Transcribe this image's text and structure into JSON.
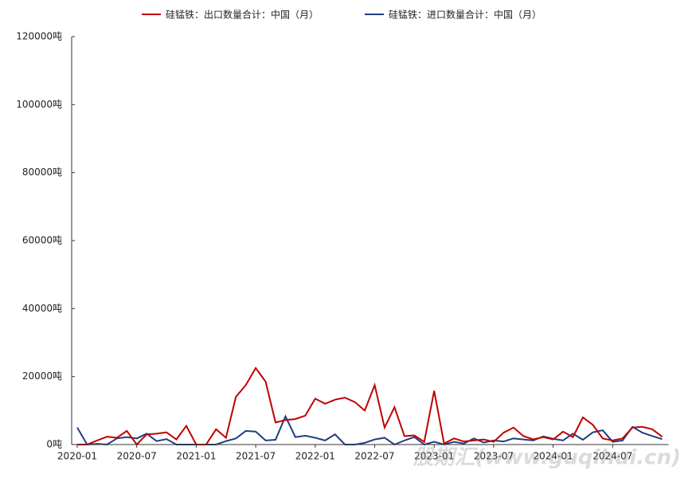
{
  "chart_data": {
    "type": "line",
    "categories": [
      "2020-01",
      null,
      null,
      null,
      null,
      null,
      "2020-07",
      null,
      null,
      null,
      null,
      null,
      "2021-01",
      null,
      null,
      null,
      null,
      null,
      "2021-07",
      null,
      null,
      null,
      null,
      null,
      "2022-01",
      null,
      null,
      null,
      null,
      null,
      "2022-07",
      null,
      null,
      null,
      null,
      null,
      "2023-01",
      null,
      null,
      null,
      null,
      null,
      "2023-07",
      null,
      null,
      null,
      null,
      null,
      "2024-01",
      null,
      null,
      null,
      null,
      null,
      "2024-07",
      null,
      null,
      null,
      null,
      null
    ],
    "series": [
      {
        "name": "硅锰铁：出口数量合计：中国（月）",
        "color": "#c00000",
        "values": [
          0,
          0,
          1200,
          2300,
          2000,
          4000,
          0,
          3000,
          3200,
          3600,
          1500,
          5500,
          0,
          0,
          4500,
          2000,
          14000,
          17500,
          22500,
          18500,
          6500,
          7200,
          7500,
          8500,
          13500,
          12000,
          13200,
          13800,
          12500,
          10000,
          17500,
          5000,
          11000,
          2500,
          2700,
          800,
          15800,
          300,
          1800,
          900,
          1200,
          1500,
          800,
          3500,
          5000,
          2500,
          1500,
          2200,
          1500,
          3800,
          2200,
          8000,
          5800,
          1800,
          1200,
          1800,
          5000,
          5200,
          4500,
          2300
        ]
      },
      {
        "name": "硅锰铁：进口数量合计：中国（月）",
        "color": "#1f3f7f",
        "values": [
          5000,
          0,
          200,
          0,
          1800,
          2200,
          1800,
          3200,
          1000,
          1600,
          0,
          0,
          0,
          0,
          0,
          1000,
          1800,
          4000,
          3800,
          1200,
          1400,
          8300,
          2200,
          2600,
          2000,
          1200,
          3000,
          0,
          0,
          500,
          1500,
          2000,
          0,
          1200,
          2200,
          0,
          800,
          0,
          800,
          300,
          1800,
          600,
          1200,
          900,
          1800,
          1500,
          1200,
          2400,
          1700,
          1200,
          3200,
          1400,
          3600,
          4200,
          800,
          1200,
          5200,
          3500,
          2500,
          1600
        ]
      }
    ],
    "ylim": [
      0,
      120000
    ],
    "yticks": [
      {
        "value": 0,
        "label": "0吨"
      },
      {
        "value": 20000,
        "label": "20000吨"
      },
      {
        "value": 40000,
        "label": "40000吨"
      },
      {
        "value": 60000,
        "label": "60000吨"
      },
      {
        "value": 80000,
        "label": "80000吨"
      },
      {
        "value": 100000,
        "label": "100000吨"
      },
      {
        "value": 120000,
        "label": "120000吨"
      }
    ],
    "grid": false,
    "legend": "top",
    "watermark": "股期汇(www.guqihui.cn)"
  }
}
